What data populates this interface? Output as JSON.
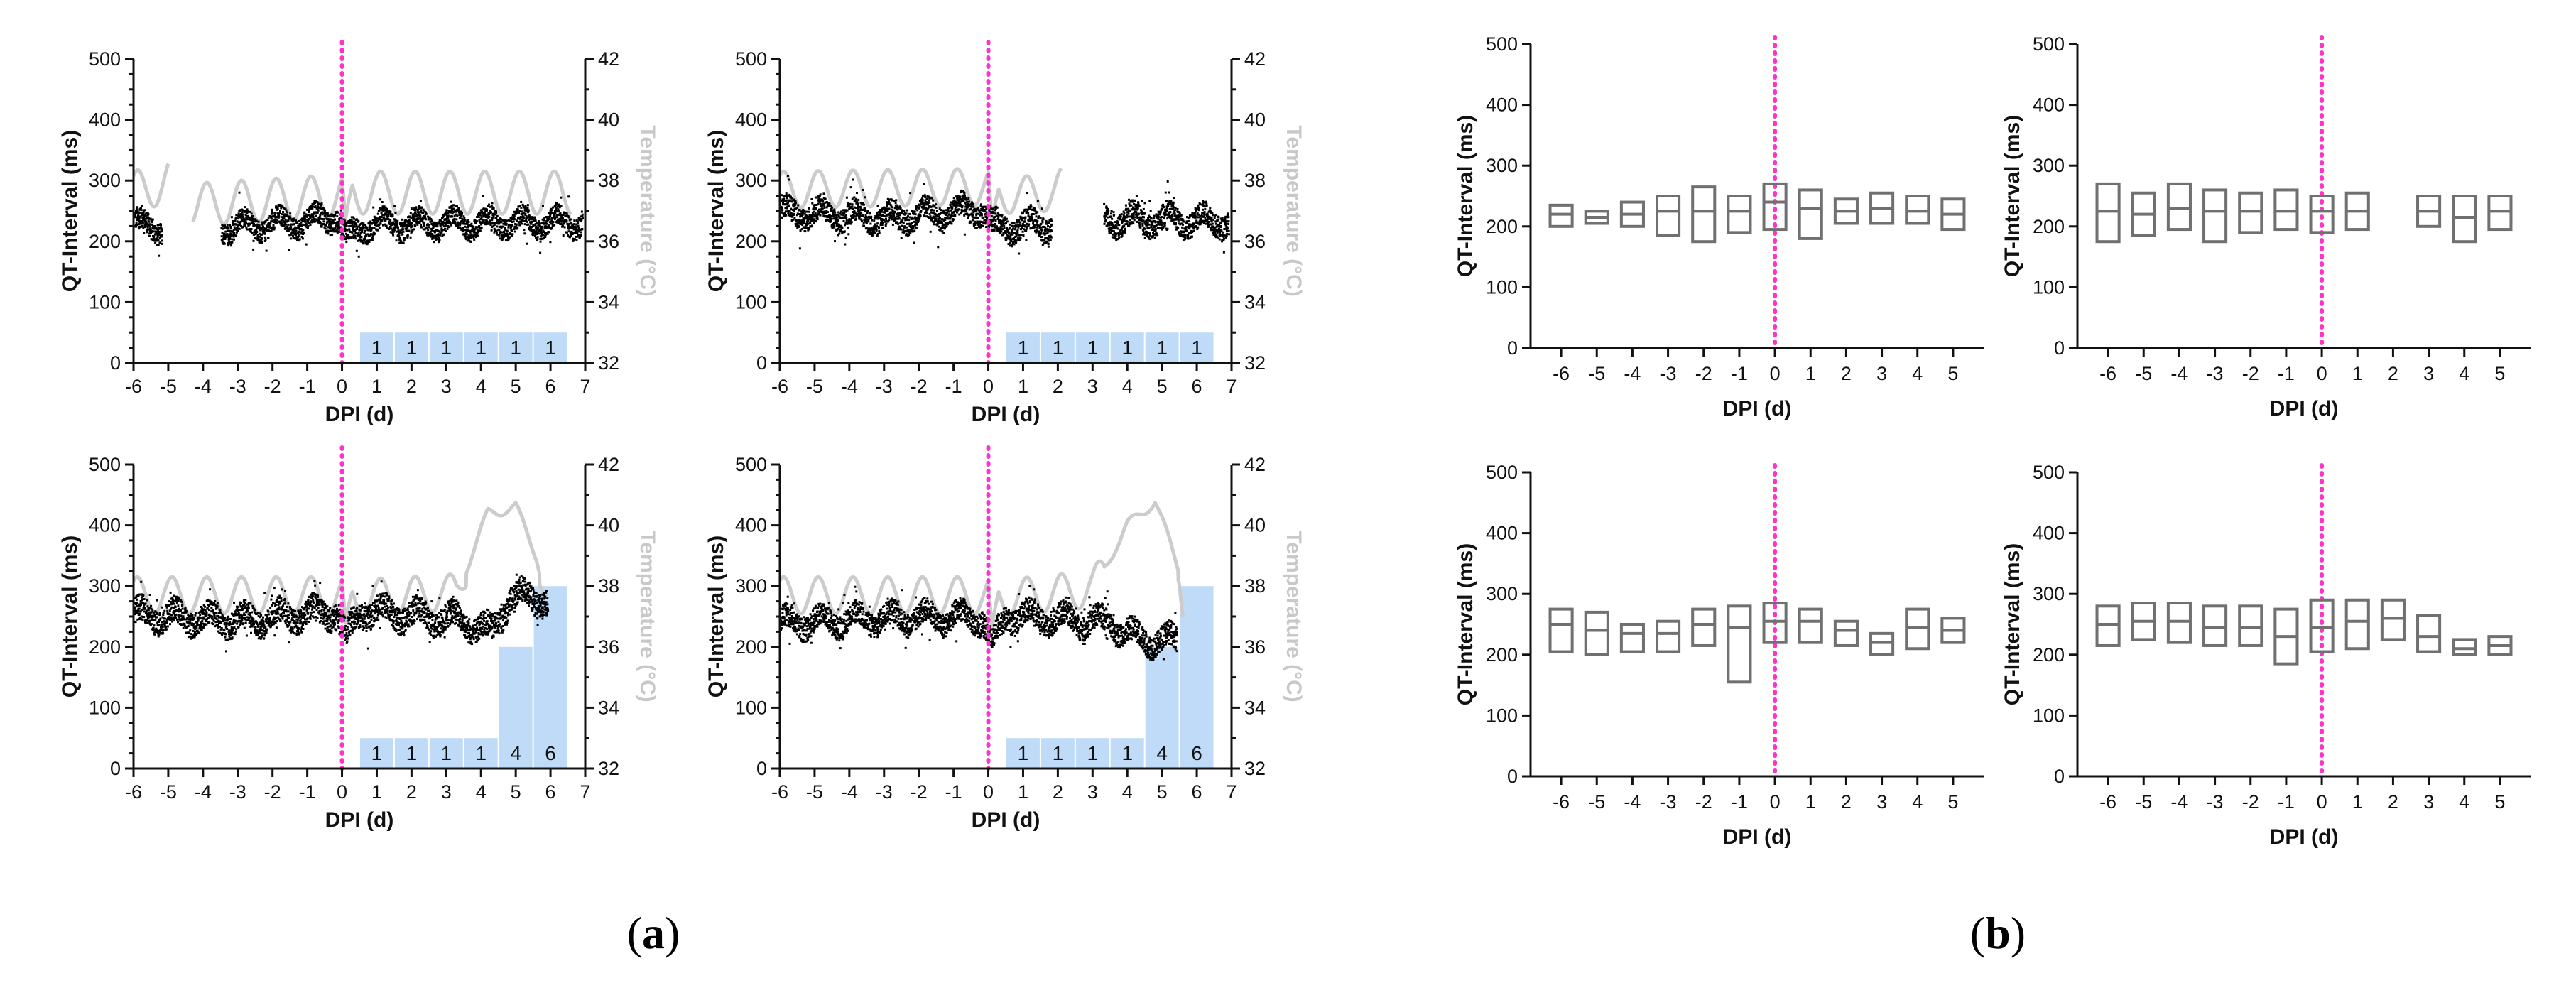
{
  "figure_labels": {
    "a": "a",
    "b": "b"
  },
  "colors": {
    "qt_points": "#000000",
    "temperature": "#cccccc",
    "infection_line": "#ff33cc",
    "score_bars": "#bfdbf7",
    "box": "#707070"
  },
  "chart_data": [
    {
      "id": "a1",
      "type": "scatter",
      "xlabel": "DPI (d)",
      "ylabel": "QT-Interval (ms)",
      "y2label": "Temperature (°C)",
      "xticks": [
        "-6",
        "-5",
        "-4",
        "-3",
        "-2",
        "-1",
        "0",
        "1",
        "2",
        "3",
        "4",
        "5",
        "6",
        "7"
      ],
      "xlim": [
        -6,
        7
      ],
      "ylim": [
        0,
        500
      ],
      "y2lim": [
        32,
        42
      ],
      "yticks": [
        "0",
        "100",
        "200",
        "300",
        "400",
        "500"
      ],
      "y2ticks": [
        "32",
        "34",
        "36",
        "38",
        "40",
        "42"
      ],
      "infection_day": 0,
      "qt_profile": [
        [
          -6,
          230
        ],
        [
          -5.2,
          225
        ],
        [
          -4.8,
          null
        ],
        [
          -4.2,
          null
        ],
        [
          -3.5,
          225
        ],
        [
          -1,
          235
        ],
        [
          -0.2,
          245
        ],
        [
          0.1,
          205
        ],
        [
          0.6,
          228
        ],
        [
          4.2,
          232
        ],
        [
          6.9,
          233
        ]
      ],
      "qt_spread": 25,
      "temperature_profile": [
        [
          -6,
          37.6
        ],
        [
          -5,
          38.0
        ],
        [
          -4.5,
          null
        ],
        [
          -4.4,
          37.2
        ],
        [
          0,
          37.5
        ],
        [
          0.1,
          36.0
        ],
        [
          0.3,
          37.6
        ],
        [
          6.6,
          37.6
        ]
      ],
      "temp_missing": [
        [
          -4.6,
          -4.3
        ]
      ],
      "temp_oscillation": 0.7,
      "score_bars": [
        {
          "day": 1,
          "score": "1",
          "value": 50
        },
        {
          "day": 2,
          "score": "1",
          "value": 50
        },
        {
          "day": 3,
          "score": "1",
          "value": 50
        },
        {
          "day": 4,
          "score": "1",
          "value": 50
        },
        {
          "day": 5,
          "score": "1",
          "value": 50
        },
        {
          "day": 6,
          "score": "1",
          "value": 50
        }
      ]
    },
    {
      "id": "a2",
      "type": "scatter",
      "xlabel": "DPI (d)",
      "ylabel": "QT-Interval (ms)",
      "y2label": "Temperature (°C)",
      "xticks": [
        "-6",
        "-5",
        "-4",
        "-3",
        "-2",
        "-1",
        "0",
        "1",
        "2",
        "3",
        "4",
        "5",
        "6",
        "7"
      ],
      "xlim": [
        -6,
        7
      ],
      "ylim": [
        0,
        500
      ],
      "y2lim": [
        32,
        42
      ],
      "yticks": [
        "0",
        "100",
        "200",
        "300",
        "400",
        "500"
      ],
      "y2ticks": [
        "32",
        "34",
        "36",
        "38",
        "40",
        "42"
      ],
      "infection_day": 0,
      "qt_profile": [
        [
          -6,
          250
        ],
        [
          -3,
          240
        ],
        [
          -0.2,
          255
        ],
        [
          0.1,
          225
        ],
        [
          1.8,
          230
        ],
        [
          2.2,
          null
        ],
        [
          3.2,
          null
        ],
        [
          3.3,
          238
        ],
        [
          6.9,
          235
        ]
      ],
      "qt_spread": 28,
      "temperature_profile": [
        [
          -6,
          37.7
        ],
        [
          0,
          37.8
        ],
        [
          0.1,
          36.0
        ],
        [
          0.3,
          37.5
        ],
        [
          1.9,
          37.6
        ],
        [
          2.1,
          37.8
        ]
      ],
      "temp_missing": [
        [
          2.2,
          3.2
        ]
      ],
      "temp_oscillation": 0.6,
      "score_bars": [
        {
          "day": 1,
          "score": "1",
          "value": 50
        },
        {
          "day": 2,
          "score": "1",
          "value": 50
        },
        {
          "day": 3,
          "score": "1",
          "value": 50
        },
        {
          "day": 4,
          "score": "1",
          "value": 50
        },
        {
          "day": 5,
          "score": "1",
          "value": 50
        },
        {
          "day": 6,
          "score": "1",
          "value": 50
        }
      ]
    },
    {
      "id": "a3",
      "type": "scatter",
      "xlabel": "DPI (d)",
      "ylabel": "QT-Interval (ms)",
      "y2label": "Temperature (°C)",
      "xticks": [
        "-6",
        "-5",
        "-4",
        "-3",
        "-2",
        "-1",
        "0",
        "1",
        "2",
        "3",
        "4",
        "5",
        "6",
        "7"
      ],
      "xlim": [
        -6,
        7
      ],
      "ylim": [
        0,
        500
      ],
      "y2lim": [
        32,
        42
      ],
      "yticks": [
        "0",
        "100",
        "200",
        "300",
        "400",
        "500"
      ],
      "y2ticks": [
        "32",
        "34",
        "36",
        "38",
        "40",
        "42"
      ],
      "infection_day": 0,
      "qt_profile": [
        [
          -6,
          255
        ],
        [
          -3,
          245
        ],
        [
          -0.2,
          260
        ],
        [
          0.1,
          215
        ],
        [
          0.5,
          262
        ],
        [
          3.5,
          245
        ],
        [
          4.3,
          225
        ],
        [
          4.8,
          285
        ],
        [
          5.9,
          280
        ]
      ],
      "qt_spread": 30,
      "temperature_profile": [
        [
          -6,
          37.7
        ],
        [
          0,
          37.7
        ],
        [
          0.1,
          36.2
        ],
        [
          0.3,
          37.6
        ],
        [
          3.3,
          37.8
        ],
        [
          4.2,
          40.4
        ],
        [
          5.0,
          40.6
        ],
        [
          5.6,
          39.0
        ],
        [
          5.9,
          37.5
        ]
      ],
      "temp_missing": [],
      "temp_oscillation": 0.6,
      "score_bars": [
        {
          "day": 1,
          "score": "1",
          "value": 50
        },
        {
          "day": 2,
          "score": "1",
          "value": 50
        },
        {
          "day": 3,
          "score": "1",
          "value": 50
        },
        {
          "day": 4,
          "score": "1",
          "value": 50
        },
        {
          "day": 5,
          "score": "4",
          "value": 200
        },
        {
          "day": 6,
          "score": "6",
          "value": 300
        }
      ]
    },
    {
      "id": "a4",
      "type": "scatter",
      "xlabel": "DPI (d)",
      "ylabel": "QT-Interval (ms)",
      "y2label": "Temperature (°C)",
      "xticks": [
        "-6",
        "-5",
        "-4",
        "-3",
        "-2",
        "-1",
        "0",
        "1",
        "2",
        "3",
        "4",
        "5",
        "6",
        "7"
      ],
      "xlim": [
        -6,
        7
      ],
      "ylim": [
        0,
        500
      ],
      "y2lim": [
        32,
        42
      ],
      "yticks": [
        "0",
        "100",
        "200",
        "300",
        "400",
        "500"
      ],
      "y2ticks": [
        "32",
        "34",
        "36",
        "38",
        "40",
        "42"
      ],
      "infection_day": 0,
      "qt_profile": [
        [
          -6,
          240
        ],
        [
          -3,
          250
        ],
        [
          -0.2,
          250
        ],
        [
          0.1,
          205
        ],
        [
          0.5,
          255
        ],
        [
          3.5,
          240
        ],
        [
          4.3,
          215
        ],
        [
          5.4,
          212
        ]
      ],
      "qt_spread": 28,
      "temperature_profile": [
        [
          -6,
          37.7
        ],
        [
          0,
          37.7
        ],
        [
          0.1,
          36.0
        ],
        [
          0.3,
          37.6
        ],
        [
          3.0,
          37.9
        ],
        [
          4.0,
          40.0
        ],
        [
          4.8,
          40.8
        ],
        [
          5.5,
          38.5
        ],
        [
          5.6,
          37.6
        ]
      ],
      "temp_missing": [],
      "temp_oscillation": 0.6,
      "score_bars": [
        {
          "day": 1,
          "score": "1",
          "value": 50
        },
        {
          "day": 2,
          "score": "1",
          "value": 50
        },
        {
          "day": 3,
          "score": "1",
          "value": 50
        },
        {
          "day": 4,
          "score": "1",
          "value": 50
        },
        {
          "day": 5,
          "score": "4",
          "value": 200
        },
        {
          "day": 6,
          "score": "6",
          "value": 300
        }
      ]
    },
    {
      "id": "b1",
      "type": "box",
      "xlabel": "DPI (d)",
      "ylabel": "QT-Interval (ms)",
      "categories": [
        "-6",
        "-5",
        "-4",
        "-3",
        "-2",
        "-1",
        "0",
        "1",
        "2",
        "3",
        "4",
        "5"
      ],
      "ylim": [
        0,
        500
      ],
      "yticks": [
        "0",
        "100",
        "200",
        "300",
        "400",
        "500"
      ],
      "infection_day": 0,
      "boxes": [
        [
          200,
          220,
          235
        ],
        [
          205,
          215,
          225
        ],
        [
          200,
          220,
          240
        ],
        [
          185,
          225,
          250
        ],
        [
          175,
          225,
          265
        ],
        [
          190,
          225,
          250
        ],
        [
          195,
          240,
          270
        ],
        [
          180,
          230,
          260
        ],
        [
          205,
          225,
          245
        ],
        [
          205,
          230,
          255
        ],
        [
          205,
          225,
          250
        ],
        [
          195,
          220,
          245
        ]
      ]
    },
    {
      "id": "b2",
      "type": "box",
      "xlabel": "DPI (d)",
      "ylabel": "QT-Interval (ms)",
      "categories": [
        "-6",
        "-5",
        "-4",
        "-3",
        "-2",
        "-1",
        "0",
        "1",
        "2",
        "3",
        "4",
        "5"
      ],
      "ylim": [
        0,
        500
      ],
      "yticks": [
        "0",
        "100",
        "200",
        "300",
        "400",
        "500"
      ],
      "infection_day": 0,
      "boxes": [
        [
          175,
          225,
          270
        ],
        [
          185,
          220,
          255
        ],
        [
          195,
          230,
          270
        ],
        [
          175,
          225,
          260
        ],
        [
          190,
          225,
          255
        ],
        [
          195,
          225,
          260
        ],
        [
          190,
          225,
          250
        ],
        [
          195,
          225,
          255
        ],
        null,
        [
          200,
          225,
          250
        ],
        [
          175,
          215,
          250
        ],
        [
          195,
          225,
          250
        ]
      ]
    },
    {
      "id": "b3",
      "type": "box",
      "xlabel": "DPI (d)",
      "ylabel": "QT-Interval (ms)",
      "categories": [
        "-6",
        "-5",
        "-4",
        "-3",
        "-2",
        "-1",
        "0",
        "1",
        "2",
        "3",
        "4",
        "5"
      ],
      "ylim": [
        0,
        500
      ],
      "yticks": [
        "0",
        "100",
        "200",
        "300",
        "400",
        "500"
      ],
      "infection_day": 0,
      "boxes": [
        [
          205,
          250,
          275
        ],
        [
          200,
          240,
          270
        ],
        [
          205,
          235,
          250
        ],
        [
          205,
          235,
          255
        ],
        [
          215,
          250,
          275
        ],
        [
          155,
          245,
          280
        ],
        [
          220,
          255,
          285
        ],
        [
          220,
          255,
          275
        ],
        [
          215,
          240,
          255
        ],
        [
          200,
          220,
          235
        ],
        [
          210,
          245,
          275
        ],
        [
          220,
          240,
          260
        ]
      ]
    },
    {
      "id": "b4",
      "type": "box",
      "xlabel": "DPI (d)",
      "ylabel": "QT-Interval (ms)",
      "categories": [
        "-6",
        "-5",
        "-4",
        "-3",
        "-2",
        "-1",
        "0",
        "1",
        "2",
        "3",
        "4",
        "5"
      ],
      "ylim": [
        0,
        500
      ],
      "yticks": [
        "0",
        "100",
        "200",
        "300",
        "400",
        "500"
      ],
      "infection_day": 0,
      "boxes": [
        [
          215,
          250,
          280
        ],
        [
          225,
          255,
          285
        ],
        [
          220,
          255,
          285
        ],
        [
          215,
          245,
          280
        ],
        [
          215,
          245,
          280
        ],
        [
          185,
          230,
          275
        ],
        [
          205,
          245,
          290
        ],
        [
          210,
          255,
          290
        ],
        [
          225,
          260,
          290
        ],
        [
          205,
          230,
          265
        ],
        [
          200,
          210,
          225
        ],
        [
          200,
          215,
          230
        ]
      ]
    }
  ]
}
